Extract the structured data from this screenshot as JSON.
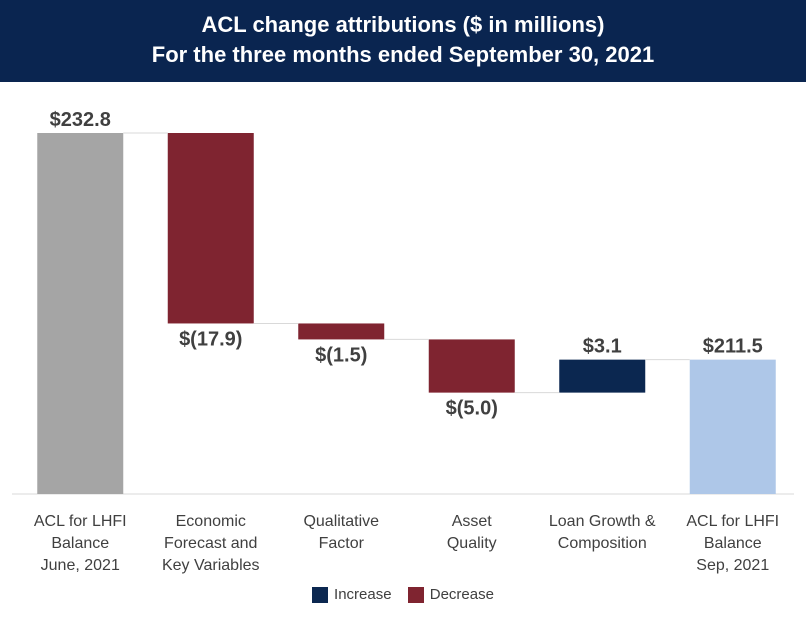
{
  "chart_data": {
    "type": "waterfall",
    "title": "ACL change attributions ($ in millions)",
    "subtitle": "For the three months ended September 30, 2021",
    "categories": [
      [
        "ACL for LHFI",
        "Balance",
        "June, 2021"
      ],
      [
        "Economic",
        "Forecast and",
        "Key Variables"
      ],
      [
        "Qualitative",
        "Factor"
      ],
      [
        "Asset",
        "Quality"
      ],
      [
        "Loan Growth &",
        "Composition"
      ],
      [
        "ACL for LHFI",
        "Balance",
        "Sep, 2021"
      ]
    ],
    "values": [
      232.8,
      -17.9,
      -1.5,
      -5.0,
      3.1,
      211.5
    ],
    "kinds": [
      "start",
      "decrease",
      "decrease",
      "decrease",
      "increase",
      "end"
    ],
    "data_labels": [
      "$232.8",
      "$(17.9)",
      "$(1.5)",
      "$(5.0)",
      "$3.1",
      "$211.5"
    ],
    "y_baseline": 0,
    "y_top": 232.8,
    "legend": [
      {
        "name": "Increase",
        "color": "#0b2750"
      },
      {
        "name": "Decrease",
        "color": "#7f2430"
      }
    ],
    "colors": {
      "start": "#a5a5a5",
      "end": "#aec7e8",
      "increase": "#0b2750",
      "decrease": "#7f2430",
      "header_bg": "#0a2550"
    }
  }
}
